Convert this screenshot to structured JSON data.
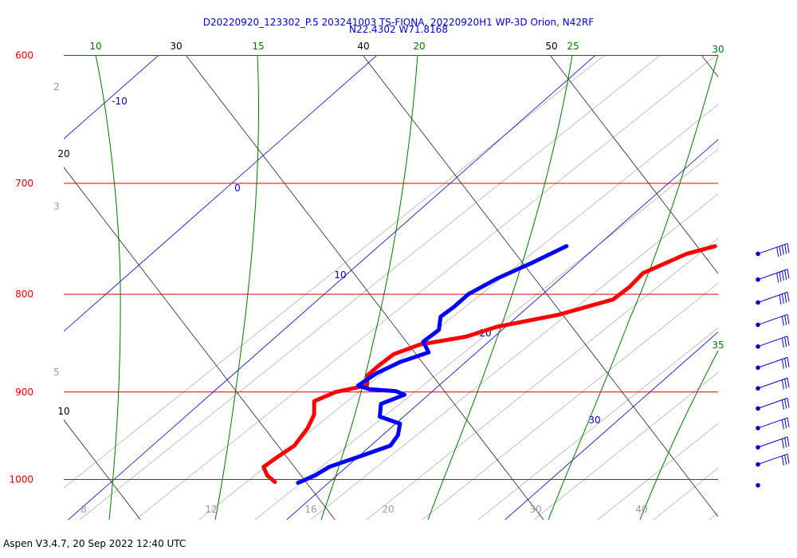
{
  "title_line1": "D20220920_123302_P.5 203241003 TS-FIONA, 20220920H1 WP-3D Orion, N42RF",
  "title_line2": "N22.4302 W71.8168",
  "footer": "Aspen V3.4.7, 20 Sep 2022  12:40 UTC",
  "colors": {
    "isobar": "#dd0000",
    "isotherm": "#0000cc",
    "moist_adiabat": "#007700",
    "dry_adiabat": "#000000",
    "mixing_ratio": "#999999",
    "dewpoint": "#0000ff",
    "temperature": "#ff0000",
    "wind_barb": "#0000cc"
  },
  "chart_data": {
    "type": "skew-t",
    "pressure_levels_hPa": [
      "600",
      "700",
      "800",
      "900",
      "1000"
    ],
    "isotherm_labels": [
      "-10",
      "0",
      "10",
      "20",
      "30"
    ],
    "moist_adiabat_labels": [
      "10",
      "15",
      "20",
      "25",
      "30",
      "35"
    ],
    "dry_adiabat_labels": [
      "10",
      "20",
      "30",
      "40",
      "50"
    ],
    "mixing_ratio_labels": [
      "2",
      "3",
      "5",
      "8",
      "12",
      "16",
      "20",
      "30",
      "40"
    ],
    "temperature_profile": [
      {
        "p": 755,
        "t": 15.4
      },
      {
        "p": 762,
        "t": 14.5
      },
      {
        "p": 780,
        "t": 13.5
      },
      {
        "p": 793,
        "t": 13.6
      },
      {
        "p": 805,
        "t": 13.5
      },
      {
        "p": 820,
        "t": 11.8
      },
      {
        "p": 832,
        "t": 9.6
      },
      {
        "p": 842,
        "t": 8.7
      },
      {
        "p": 850,
        "t": 7.0
      },
      {
        "p": 860,
        "t": 6.3
      },
      {
        "p": 872,
        "t": 6.2
      },
      {
        "p": 882,
        "t": 6.2
      },
      {
        "p": 893,
        "t": 6.7
      },
      {
        "p": 900,
        "t": 5.6
      },
      {
        "p": 910,
        "t": 5.1
      },
      {
        "p": 925,
        "t": 5.8
      },
      {
        "p": 940,
        "t": 6.2
      },
      {
        "p": 960,
        "t": 6.5
      },
      {
        "p": 975,
        "t": 6.3
      },
      {
        "p": 985,
        "t": 6.2
      },
      {
        "p": 995,
        "t": 6.8
      },
      {
        "p": 1003,
        "t": 7.5
      }
    ],
    "dewpoint_profile": [
      {
        "p": 755,
        "t": 8.6
      },
      {
        "p": 770,
        "t": 7.9
      },
      {
        "p": 785,
        "t": 7.1
      },
      {
        "p": 800,
        "t": 6.6
      },
      {
        "p": 812,
        "t": 6.6
      },
      {
        "p": 822,
        "t": 6.5
      },
      {
        "p": 835,
        "t": 7.1
      },
      {
        "p": 847,
        "t": 7.0
      },
      {
        "p": 858,
        "t": 7.8
      },
      {
        "p": 868,
        "t": 7.0
      },
      {
        "p": 880,
        "t": 6.5
      },
      {
        "p": 893,
        "t": 6.3
      },
      {
        "p": 897,
        "t": 7.0
      },
      {
        "p": 899,
        "t": 8.3
      },
      {
        "p": 903,
        "t": 8.9
      },
      {
        "p": 913,
        "t": 8.3
      },
      {
        "p": 927,
        "t": 8.9
      },
      {
        "p": 935,
        "t": 10.2
      },
      {
        "p": 948,
        "t": 10.7
      },
      {
        "p": 960,
        "t": 10.9
      },
      {
        "p": 972,
        "t": 10.1
      },
      {
        "p": 985,
        "t": 9.2
      },
      {
        "p": 995,
        "t": 9.0
      },
      {
        "p": 1004,
        "t": 8.6
      }
    ],
    "wind_barbs": [
      {
        "p": 762,
        "barbs": 5
      },
      {
        "p": 786,
        "barbs": 5
      },
      {
        "p": 808,
        "barbs": 4
      },
      {
        "p": 830,
        "barbs": 3
      },
      {
        "p": 852,
        "barbs": 3
      },
      {
        "p": 874,
        "barbs": 3
      },
      {
        "p": 896,
        "barbs": 3
      },
      {
        "p": 918,
        "barbs": 3
      },
      {
        "p": 940,
        "barbs": 3
      },
      {
        "p": 962,
        "barbs": 3
      },
      {
        "p": 982,
        "barbs": 3
      }
    ]
  }
}
